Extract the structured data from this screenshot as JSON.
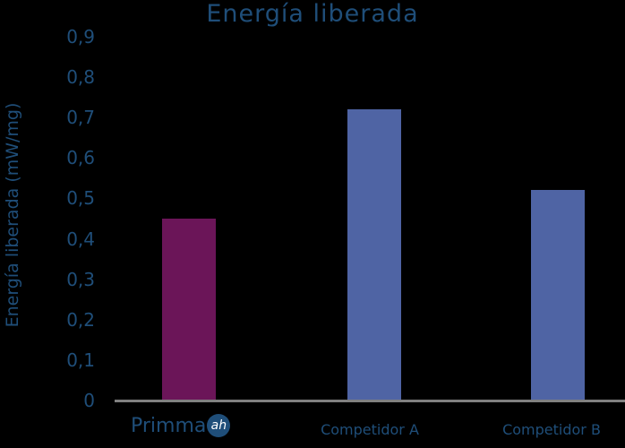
{
  "chart_data": {
    "type": "bar",
    "title": "Energía liberada",
    "xlabel": "",
    "ylabel": "Energía liberada (mW/mg)",
    "categories": [
      "Primma ah",
      "Competidor A",
      "Competidor B"
    ],
    "values": [
      0.45,
      0.72,
      0.52
    ],
    "colors": [
      "#6b1558",
      "#4f64a4",
      "#4f64a4"
    ],
    "ylim": [
      0,
      0.9
    ],
    "yticks": [
      "0",
      "0,1",
      "0,2",
      "0,3",
      "0,4",
      "0,5",
      "0,6",
      "0,7",
      "0,8",
      "0,9"
    ],
    "grid": false,
    "legend": "none"
  },
  "labels": {
    "title": "Energía liberada",
    "ylabel": "Energía liberada (mW/mg)",
    "logo_text": "Primma",
    "logo_badge": "ah",
    "cat_a": "Competidor A",
    "cat_b": "Competidor B"
  }
}
